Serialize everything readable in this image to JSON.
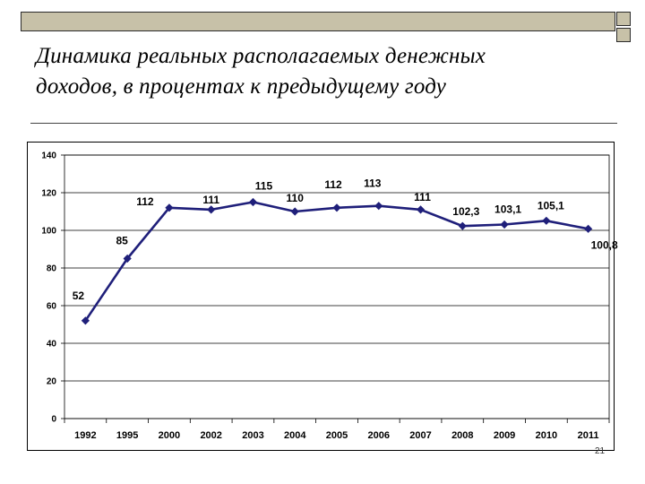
{
  "slide": {
    "title_line1": "Динамика реальных располагаемых денежных",
    "title_line2": "доходов, в процентах к предыдущему году",
    "page_number": "21",
    "accent_color": "#c7c1a8"
  },
  "chart_data": {
    "type": "line",
    "title": "",
    "xlabel": "",
    "ylabel": "",
    "categories": [
      "1992",
      "1995",
      "2000",
      "2002",
      "2003",
      "2004",
      "2005",
      "2006",
      "2007",
      "2008",
      "2009",
      "2010",
      "2011"
    ],
    "series": [
      {
        "values": [
          52,
          85,
          112,
          111,
          115,
          110,
          112,
          113,
          111,
          102.3,
          103.1,
          105.1,
          100.8
        ],
        "labels": [
          "52",
          "85",
          "112",
          "111",
          "115",
          "110",
          "112",
          "113",
          "111",
          "102,3",
          "103,1",
          "105,1",
          "100,8"
        ],
        "color": "#1f1f7a",
        "marker": "diamond"
      }
    ],
    "ylim": [
      0,
      140
    ],
    "yticks": [
      0,
      20,
      40,
      60,
      80,
      100,
      120,
      140
    ],
    "grid": true,
    "legend": "none"
  }
}
